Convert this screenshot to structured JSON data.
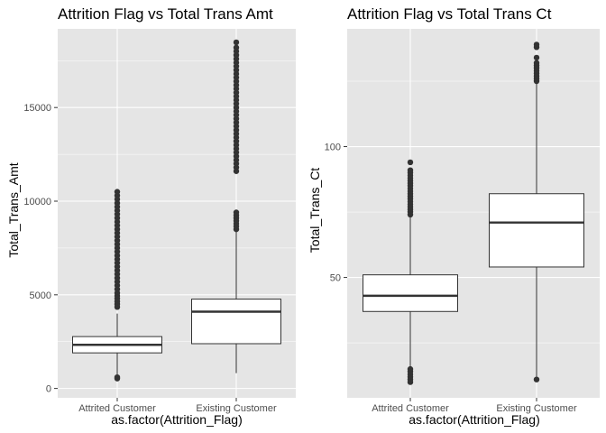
{
  "theme": {
    "panel_bg": "#e5e5e5",
    "grid_major": "#ffffff",
    "box_fill": "#ffffff",
    "box_stroke": "#333333",
    "outlier": "#333333"
  },
  "chart_data": [
    {
      "type": "boxplot",
      "title": "Attrition Flag vs Total Trans Amt",
      "xlabel": "as.factor(Attrition_Flag)",
      "ylabel": "Total_Trans_Amt",
      "ylim": [
        -500,
        19200
      ],
      "yticks": [
        0,
        5000,
        10000,
        15000
      ],
      "ytick_labels": [
        "0",
        "5000",
        "10000",
        "15000"
      ],
      "grid": true,
      "categories": [
        "Attrited Customer",
        "Existing Customer"
      ],
      "boxes": [
        {
          "category": "Attrited Customer",
          "whisker_low": 510,
          "q1": 1900,
          "median": 2330,
          "q3": 2770,
          "whisker_high": 4000,
          "outliers": [
            530,
            600,
            4350,
            4500,
            4650,
            4800,
            4950,
            5100,
            5300,
            5500,
            5700,
            5900,
            6100,
            6300,
            6500,
            6700,
            6900,
            7100,
            7300,
            7500,
            7700,
            7900,
            8100,
            8300,
            8500,
            8700,
            8900,
            9100,
            9300,
            9500,
            9700,
            9900,
            10100,
            10300,
            10500
          ]
        },
        {
          "category": "Existing Customer",
          "whisker_low": 820,
          "q1": 2390,
          "median": 4100,
          "q3": 4770,
          "whisker_high": 8400,
          "outliers": [
            8500,
            8650,
            8800,
            8950,
            9100,
            9250,
            9400,
            11600,
            11800,
            12000,
            12200,
            12400,
            12600,
            12800,
            13000,
            13200,
            13400,
            13600,
            13800,
            14000,
            14200,
            14400,
            14600,
            14800,
            15000,
            15200,
            15400,
            15600,
            15800,
            16000,
            16200,
            16400,
            16600,
            16800,
            17000,
            17200,
            17400,
            17600,
            17800,
            18000,
            18200,
            18480
          ]
        }
      ]
    },
    {
      "type": "boxplot",
      "title": "Attrition Flag vs Total Trans Ct",
      "xlabel": "as.factor(Attrition_Flag)",
      "ylabel": "Total_Trans_Ct",
      "ylim": [
        4,
        145
      ],
      "yticks": [
        50,
        100
      ],
      "ytick_labels": [
        "50",
        "100"
      ],
      "grid": true,
      "categories": [
        "Attrited Customer",
        "Existing Customer"
      ],
      "boxes": [
        {
          "category": "Attrited Customer",
          "whisker_low": 16,
          "q1": 37,
          "median": 43,
          "q3": 51,
          "whisker_high": 73,
          "outliers": [
            10,
            11,
            12,
            13,
            14,
            15,
            74,
            75,
            76,
            77,
            78,
            79,
            80,
            81,
            82,
            83,
            84,
            85,
            86,
            87,
            88,
            89,
            90,
            91,
            94
          ]
        },
        {
          "category": "Existing Customer",
          "whisker_low": 11,
          "q1": 54,
          "median": 71,
          "q3": 82,
          "whisker_high": 124,
          "outliers": [
            11,
            125,
            126,
            127,
            128,
            129,
            130,
            131,
            132,
            134,
            138,
            139
          ]
        }
      ]
    }
  ]
}
